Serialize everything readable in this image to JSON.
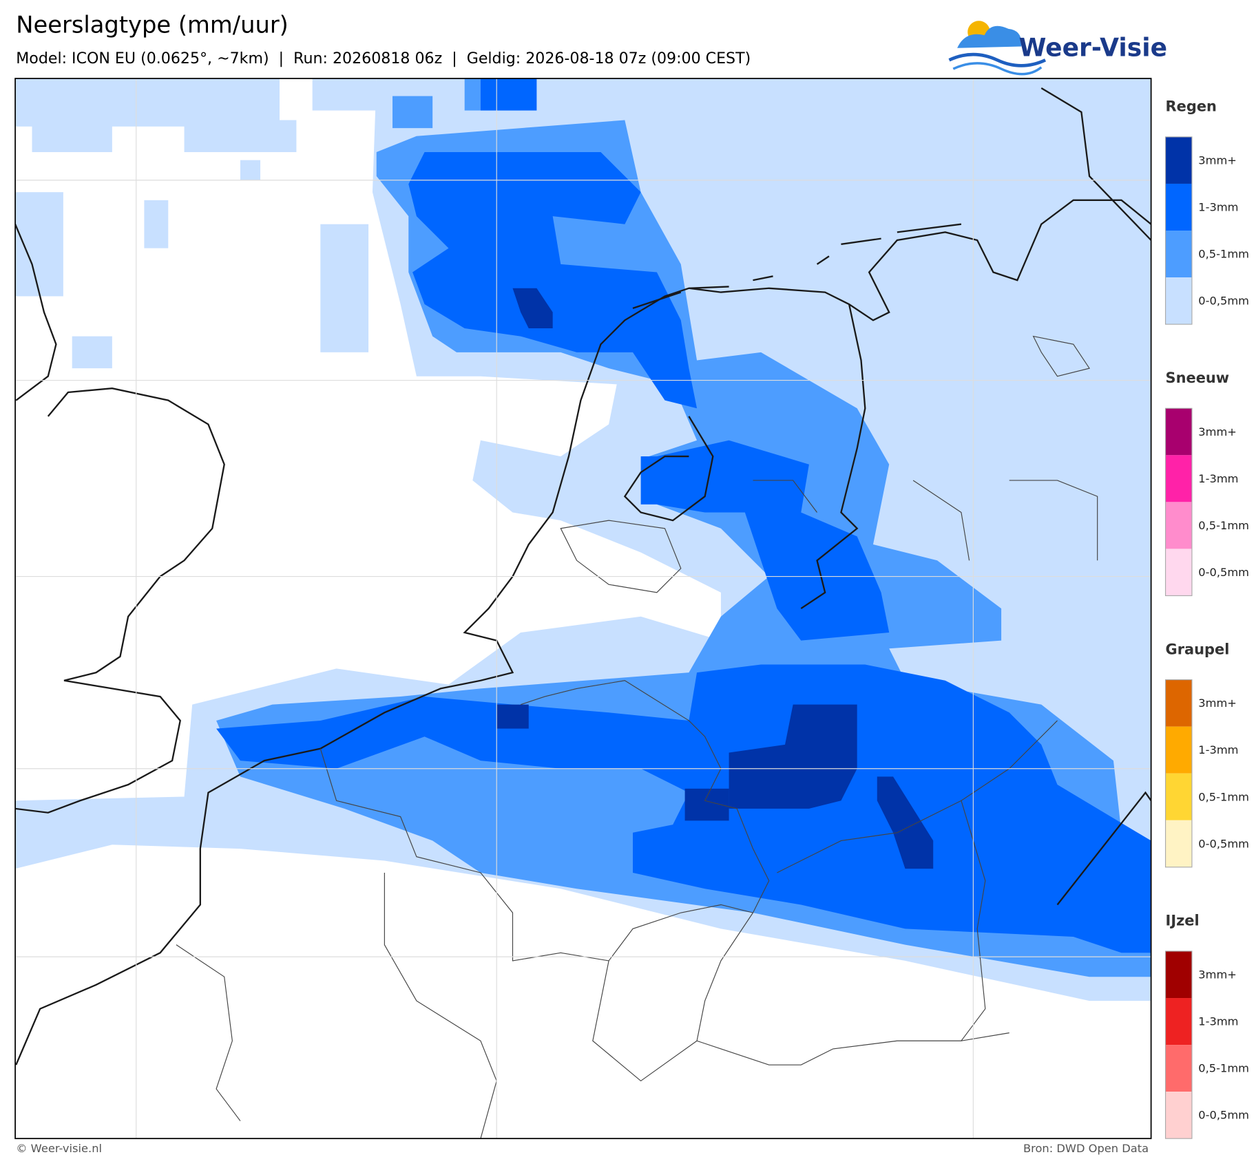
{
  "header": {
    "title": "Neerslagtype (mm/uur)",
    "subtitle": "Model: ICON EU (0.0625°, ~7km)  |  Run: 20260818 06z  |  Geldig: 2026-08-18 07z (09:00 CEST)"
  },
  "logo": {
    "text": "Weer-Visie"
  },
  "legend": [
    {
      "name": "Regen",
      "items": [
        {
          "label": "3mm+",
          "color": "#0033a8"
        },
        {
          "label": "1-3mm",
          "color": "#0066ff"
        },
        {
          "label": "0,5-1mm",
          "color": "#4d9dff"
        },
        {
          "label": "0-0,5mm",
          "color": "#c8e0ff"
        }
      ]
    },
    {
      "name": "Sneeuw",
      "items": [
        {
          "label": "3mm+",
          "color": "#a8006e"
        },
        {
          "label": "1-3mm",
          "color": "#ff22a8"
        },
        {
          "label": "0,5-1mm",
          "color": "#ff8ccc"
        },
        {
          "label": "0-0,5mm",
          "color": "#ffd8ee"
        }
      ]
    },
    {
      "name": "Graupel",
      "items": [
        {
          "label": "3mm+",
          "color": "#dd6600"
        },
        {
          "label": "1-3mm",
          "color": "#ffaa00"
        },
        {
          "label": "0,5-1mm",
          "color": "#ffd633"
        },
        {
          "label": "0-0,5mm",
          "color": "#fff3c4"
        }
      ]
    },
    {
      "name": "IJzel",
      "items": [
        {
          "label": "3mm+",
          "color": "#a00000"
        },
        {
          "label": "1-3mm",
          "color": "#ee2222"
        },
        {
          "label": "0,5-1mm",
          "color": "#ff6b6b"
        },
        {
          "label": "0-0,5mm",
          "color": "#ffd0d0"
        }
      ]
    }
  ],
  "footer": {
    "left": "© Weer-visie.nl",
    "right": "Bron: DWD Open Data"
  }
}
